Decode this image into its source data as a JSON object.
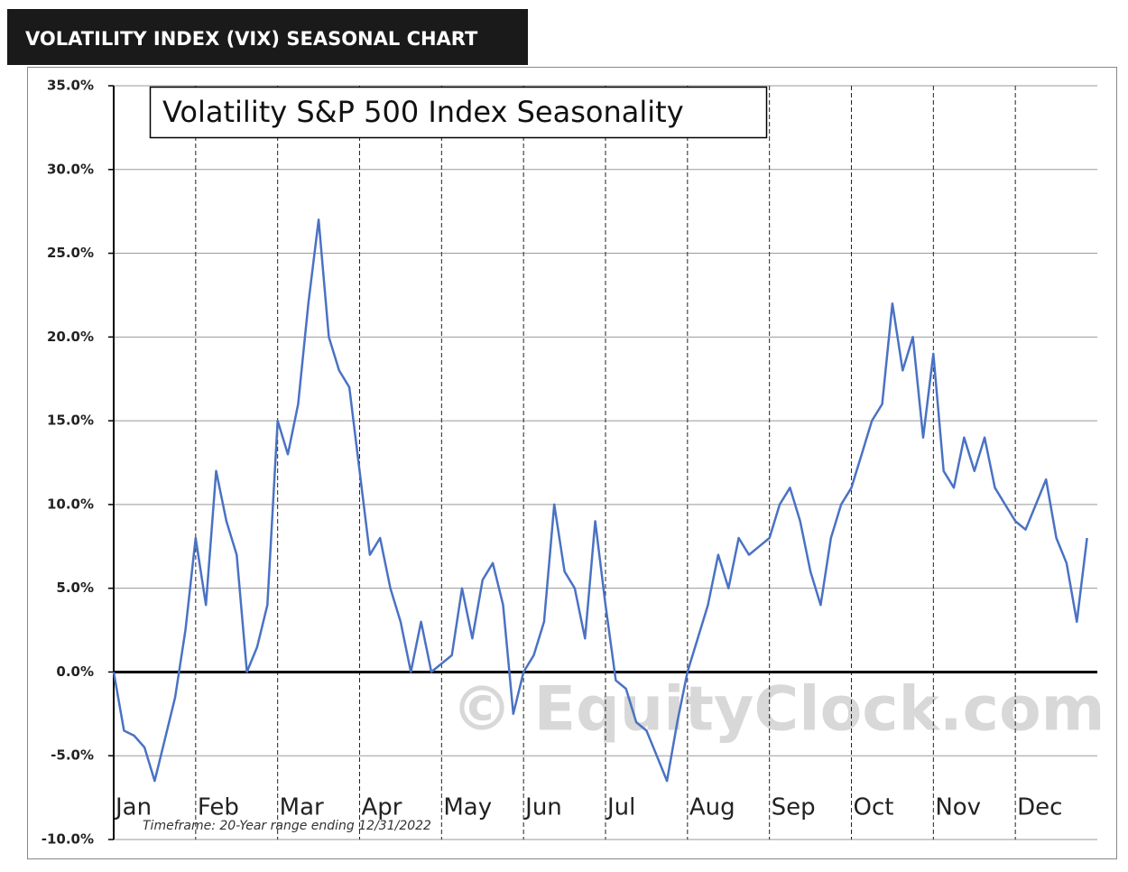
{
  "header": "VOLATILITY INDEX (VIX) SEASONAL CHART",
  "chart_data": {
    "type": "line",
    "title": "Volatility S&P 500 Index Seasonality",
    "footnote": "Timeframe: 20-Year range ending 12/31/2022",
    "watermark": "© EquityClock.com",
    "categories": [
      "Jan",
      null,
      null,
      null,
      null,
      null,
      null,
      null,
      "Feb",
      null,
      null,
      null,
      null,
      null,
      null,
      null,
      "Mar",
      null,
      null,
      null,
      null,
      null,
      null,
      null,
      "Apr",
      null,
      null,
      null,
      null,
      null,
      null,
      null,
      "May",
      null,
      null,
      null,
      null,
      null,
      null,
      null,
      "Jun",
      null,
      null,
      null,
      null,
      null,
      null,
      null,
      "Jul",
      null,
      null,
      null,
      null,
      null,
      null,
      null,
      "Aug",
      null,
      null,
      null,
      null,
      null,
      null,
      null,
      "Sep",
      null,
      null,
      null,
      null,
      null,
      null,
      null,
      "Oct",
      null,
      null,
      null,
      null,
      null,
      null,
      null,
      "Nov",
      null,
      null,
      null,
      null,
      null,
      null,
      null,
      "Dec",
      null,
      null,
      null,
      null,
      null,
      null,
      null
    ],
    "series": [
      {
        "name": "Volatility S&P 500 Index",
        "color": "#4a72c4",
        "values": [
          0,
          -3.5,
          -3.8,
          -4.5,
          -6.5,
          -4,
          -1.5,
          2.5,
          8,
          4,
          12,
          9,
          7,
          0,
          1.5,
          4,
          15,
          13,
          16,
          22,
          27,
          20,
          18,
          17,
          12,
          7,
          8,
          5,
          3,
          0,
          3,
          0,
          0.5,
          1,
          5,
          2,
          5.5,
          6.5,
          4,
          -2.5,
          0,
          1,
          3,
          10,
          6,
          5,
          2,
          9,
          4,
          -0.5,
          -1,
          -3,
          -3.5,
          -5,
          -6.5,
          -3,
          0,
          2,
          4,
          7,
          5,
          8,
          7,
          7.5,
          8,
          10,
          11,
          9,
          6,
          4,
          8,
          10,
          11,
          13,
          15,
          16,
          22,
          18,
          20,
          14,
          19,
          12,
          11,
          14,
          12,
          14,
          11,
          10,
          9,
          8.5,
          10,
          11.5,
          8,
          6.5,
          3,
          8
        ]
      }
    ],
    "ylim": [
      -10,
      35
    ],
    "yticks": [
      {
        "value": -10,
        "label": "-10.0%"
      },
      {
        "value": -5,
        "label": "-5.0%"
      },
      {
        "value": 0,
        "label": "0.0%"
      },
      {
        "value": 5,
        "label": "5.0%"
      },
      {
        "value": 10,
        "label": "10.0%"
      },
      {
        "value": 15,
        "label": "15.0%"
      },
      {
        "value": 20,
        "label": "20.0%"
      },
      {
        "value": 25,
        "label": "25.0%"
      },
      {
        "value": 30,
        "label": "30.0%"
      },
      {
        "value": 35,
        "label": "35.0%"
      }
    ],
    "grid": true
  }
}
